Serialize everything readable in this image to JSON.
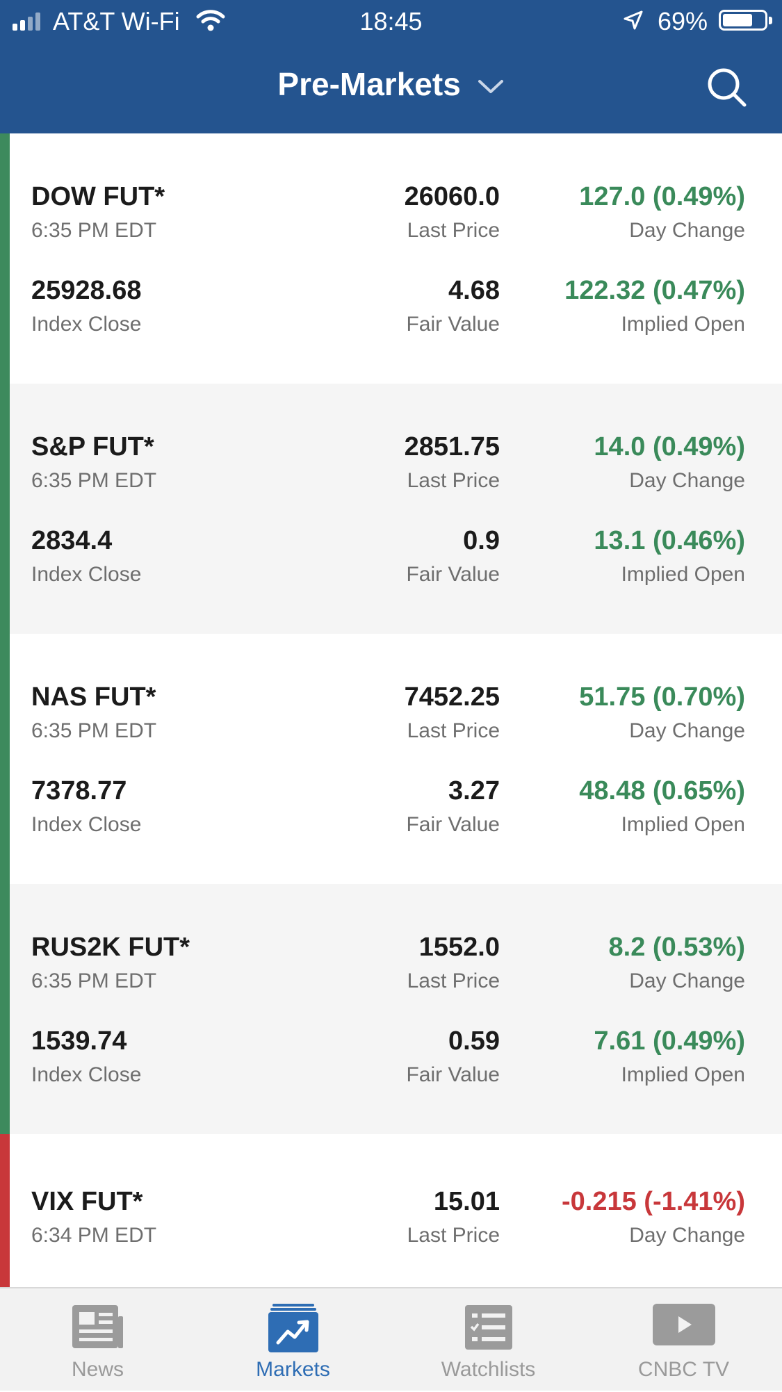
{
  "status_bar": {
    "carrier": "AT&T Wi-Fi",
    "time": "18:45",
    "battery": "69%"
  },
  "header": {
    "title": "Pre-Markets"
  },
  "rows": [
    {
      "name": "DOW FUT*",
      "time": "6:35 PM EDT",
      "last_price": "26060.0",
      "last_price_label": "Last Price",
      "day_change": "127.0 (0.49%)",
      "day_change_label": "Day Change",
      "index_close": "25928.68",
      "index_close_label": "Index Close",
      "fair_value": "4.68",
      "fair_value_label": "Fair Value",
      "implied_open": "122.32 (0.47%)",
      "implied_open_label": "Implied Open",
      "trend_color": "#3d8a5d"
    },
    {
      "name": "S&P FUT*",
      "time": "6:35 PM EDT",
      "last_price": "2851.75",
      "last_price_label": "Last Price",
      "day_change": "14.0 (0.49%)",
      "day_change_label": "Day Change",
      "index_close": "2834.4",
      "index_close_label": "Index Close",
      "fair_value": "0.9",
      "fair_value_label": "Fair Value",
      "implied_open": "13.1 (0.46%)",
      "implied_open_label": "Implied Open",
      "trend_color": "#3d8a5d"
    },
    {
      "name": "NAS FUT*",
      "time": "6:35 PM EDT",
      "last_price": "7452.25",
      "last_price_label": "Last Price",
      "day_change": "51.75 (0.70%)",
      "day_change_label": "Day Change",
      "index_close": "7378.77",
      "index_close_label": "Index Close",
      "fair_value": "3.27",
      "fair_value_label": "Fair Value",
      "implied_open": "48.48 (0.65%)",
      "implied_open_label": "Implied Open",
      "trend_color": "#3d8a5d"
    },
    {
      "name": "RUS2K FUT*",
      "time": "6:35 PM EDT",
      "last_price": "1552.0",
      "last_price_label": "Last Price",
      "day_change": "8.2 (0.53%)",
      "day_change_label": "Day Change",
      "index_close": "1539.74",
      "index_close_label": "Index Close",
      "fair_value": "0.59",
      "fair_value_label": "Fair Value",
      "implied_open": "7.61 (0.49%)",
      "implied_open_label": "Implied Open",
      "trend_color": "#3d8a5d"
    },
    {
      "name": "VIX FUT*",
      "time": "6:34 PM EDT",
      "last_price": "15.01",
      "last_price_label": "Last Price",
      "day_change": "-0.215 (-1.41%)",
      "day_change_label": "Day Change",
      "trend_color": "#c8373a"
    }
  ],
  "tabbar": {
    "tabs": [
      {
        "label": "News",
        "icon": "newspaper-icon",
        "active": false
      },
      {
        "label": "Markets",
        "icon": "chart-icon",
        "active": true
      },
      {
        "label": "Watchlists",
        "icon": "checklist-icon",
        "active": false
      },
      {
        "label": "CNBC TV",
        "icon": "play-icon",
        "active": false
      }
    ]
  },
  "colors": {
    "header_bg": "#24548f",
    "positive": "#3a8a5a",
    "negative": "#c8373a",
    "tab_active": "#2e6db4"
  }
}
